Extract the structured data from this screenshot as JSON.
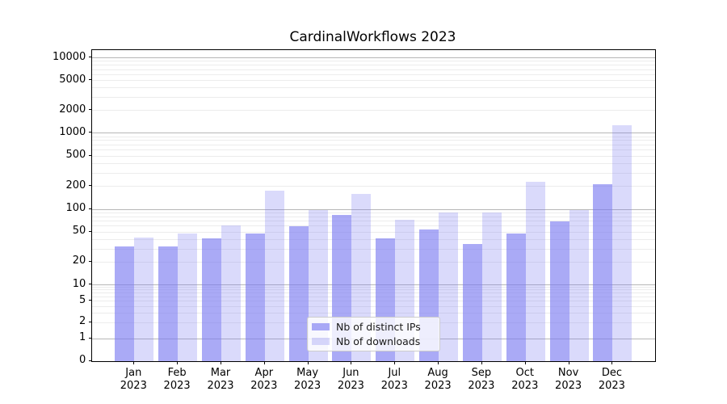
{
  "title": "CardinalWorkflows 2023",
  "colors": {
    "bar_base": "#7a7af1",
    "series_ips": "rgba(122,122,241,0.64)",
    "series_downloads": "rgba(122,122,241,0.28)",
    "grid_major": "#b6b6b6",
    "grid_minor": "#ececec",
    "axis": "#000000"
  },
  "legend": {
    "items": [
      {
        "label": "Nb of distinct IPs",
        "color": "rgba(122,122,241,0.64)"
      },
      {
        "label": "Nb of downloads",
        "color": "rgba(122,122,241,0.28)"
      }
    ]
  },
  "y_axis": {
    "tick_labels": [
      "10000",
      "5000",
      "2000",
      "1000",
      "500",
      "200",
      "100",
      "50",
      "20",
      "10",
      "5",
      "2",
      "1",
      "0"
    ],
    "tick_values": [
      10000,
      5000,
      2000,
      1000,
      500,
      200,
      100,
      50,
      20,
      10,
      5,
      2,
      1,
      0
    ]
  },
  "x_axis": {
    "tick_labels_line1": [
      "Jan",
      "Feb",
      "Mar",
      "Apr",
      "May",
      "Jun",
      "Jul",
      "Aug",
      "Sep",
      "Oct",
      "Nov",
      "Dec"
    ],
    "tick_labels_line2": [
      "2023",
      "2023",
      "2023",
      "2023",
      "2023",
      "2023",
      "2023",
      "2023",
      "2023",
      "2023",
      "2023",
      "2023"
    ]
  },
  "chart_data": {
    "type": "bar",
    "title": "CardinalWorkflows 2023",
    "categories": [
      "Jan 2023",
      "Feb 2023",
      "Mar 2023",
      "Apr 2023",
      "May 2023",
      "Jun 2023",
      "Jul 2023",
      "Aug 2023",
      "Sep 2023",
      "Oct 2023",
      "Nov 2023",
      "Dec 2023"
    ],
    "series": [
      {
        "name": "Nb of distinct IPs",
        "values": [
          32,
          32,
          41,
          47,
          59,
          83,
          41,
          53,
          34,
          48,
          68,
          210
        ]
      },
      {
        "name": "Nb of downloads",
        "values": [
          42,
          48,
          60,
          173,
          96,
          157,
          72,
          90,
          90,
          228,
          98,
          1270
        ]
      }
    ],
    "xlabel": "",
    "ylabel": "",
    "yscale": "symlog",
    "ylim": [
      0,
      13000
    ],
    "yticks": [
      0,
      1,
      2,
      5,
      10,
      20,
      50,
      100,
      200,
      500,
      1000,
      2000,
      5000,
      10000
    ],
    "grid": true,
    "legend_position": "lower center"
  }
}
